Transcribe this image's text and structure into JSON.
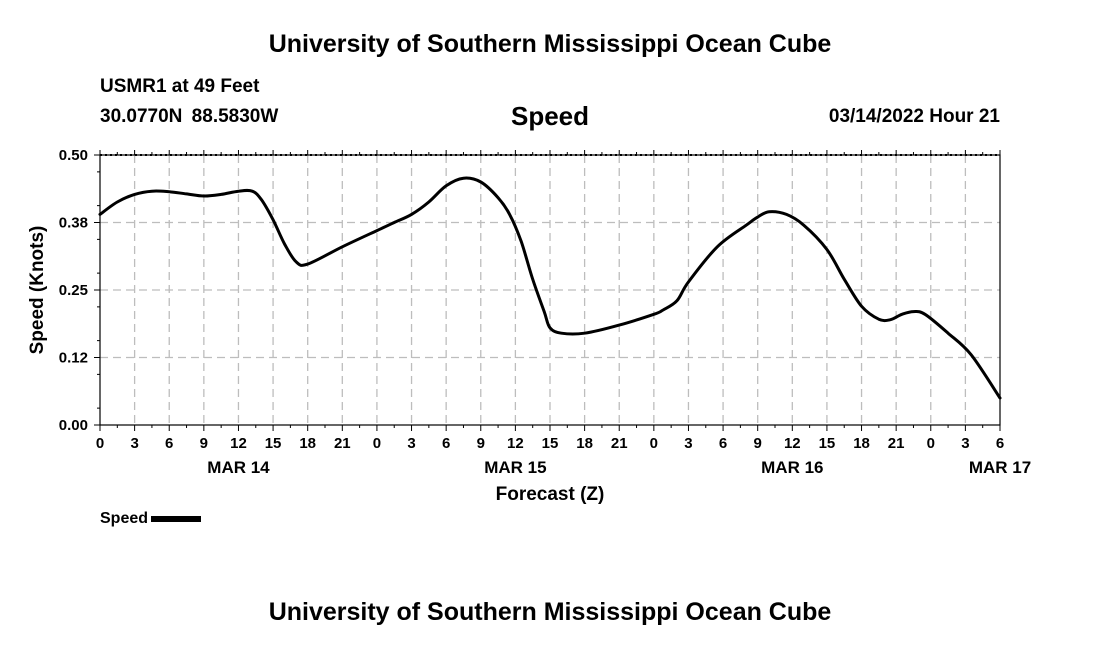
{
  "header": {
    "title": "University of Southern Mississippi Ocean Cube",
    "station": "USMR1 at 49 Feet",
    "coords": "30.0770N  88.5830W",
    "datetime": "03/14/2022 Hour 21",
    "footer_title": "University of Southern Mississippi Ocean Cube"
  },
  "legend": {
    "label": "Speed"
  },
  "chart_data": {
    "type": "line",
    "title": "Speed",
    "xlabel": "Forecast (Z)",
    "ylabel": "Speed (Knots)",
    "ylim": [
      0,
      0.5
    ],
    "yticks": [
      0.0,
      0.125,
      0.25,
      0.375,
      0.5
    ],
    "ytick_labels": [
      "0.00",
      "0.12",
      "0.25",
      "0.38",
      "0.50"
    ],
    "xlim_hours": [
      0,
      78
    ],
    "xtick_hours": [
      0,
      3,
      6,
      9,
      12,
      15,
      18,
      21,
      24,
      27,
      30,
      33,
      36,
      39,
      42,
      45,
      48,
      51,
      54,
      57,
      60,
      63,
      66,
      69,
      72,
      75,
      78
    ],
    "xtick_labels": [
      "0",
      "3",
      "6",
      "9",
      "12",
      "15",
      "18",
      "21",
      "0",
      "3",
      "6",
      "9",
      "12",
      "15",
      "18",
      "21",
      "0",
      "3",
      "6",
      "9",
      "12",
      "15",
      "18",
      "21",
      "0",
      "3",
      "6"
    ],
    "date_labels": [
      {
        "hour": 12,
        "label": "MAR 14"
      },
      {
        "hour": 36,
        "label": "MAR 15"
      },
      {
        "hour": 60,
        "label": "MAR 16"
      },
      {
        "hour": 78,
        "label": "MAR 17"
      }
    ],
    "grid": true,
    "series": [
      {
        "name": "Speed",
        "color": "#000000",
        "x": [
          0,
          1.5,
          3,
          4.5,
          6,
          7.5,
          9,
          10.5,
          12,
          13.2,
          14,
          15,
          16,
          17,
          18,
          21,
          24,
          25.5,
          27,
          28.5,
          30,
          31.5,
          33,
          34.5,
          35.5,
          36.5,
          37.5,
          38.5,
          39,
          40,
          42,
          45,
          48,
          48.8,
          50,
          51,
          53.5,
          56,
          57,
          58,
          59.5,
          61,
          63,
          64.5,
          66,
          67.5,
          68.5,
          69.5,
          70.5,
          71.5,
          73.5,
          75.5,
          78
        ],
        "values": [
          0.39,
          0.413,
          0.427,
          0.433,
          0.432,
          0.428,
          0.424,
          0.427,
          0.433,
          0.433,
          0.417,
          0.38,
          0.335,
          0.302,
          0.298,
          0.33,
          0.36,
          0.375,
          0.39,
          0.413,
          0.443,
          0.457,
          0.45,
          0.421,
          0.39,
          0.34,
          0.27,
          0.21,
          0.18,
          0.17,
          0.17,
          0.185,
          0.205,
          0.213,
          0.23,
          0.265,
          0.33,
          0.37,
          0.385,
          0.395,
          0.39,
          0.37,
          0.325,
          0.27,
          0.22,
          0.196,
          0.195,
          0.205,
          0.21,
          0.205,
          0.17,
          0.13,
          0.05
        ]
      }
    ]
  }
}
